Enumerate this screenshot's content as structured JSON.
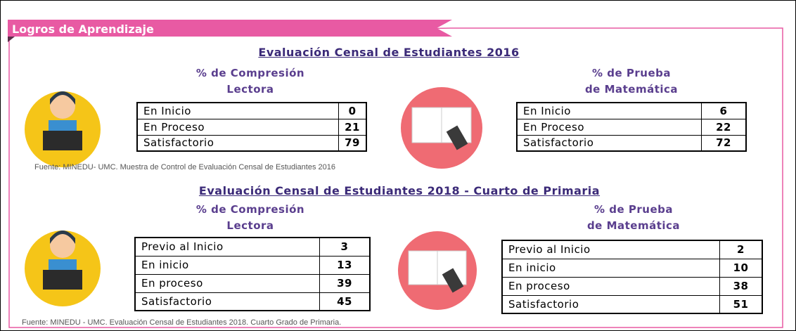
{
  "header": {
    "title": "Logros de Aprendizaje"
  },
  "sections": [
    {
      "title": "Evaluación Censal de Estudiantes 2016",
      "reading": {
        "title": [
          "% de Compresión",
          "Lectora"
        ],
        "rows": [
          [
            "En Inicio",
            0
          ],
          [
            "En Proceso",
            21
          ],
          [
            "Satisfactorio",
            79
          ]
        ]
      },
      "math": {
        "title": [
          "% de Prueba",
          "de Matemática"
        ],
        "rows": [
          [
            "En Inicio",
            6
          ],
          [
            "En Proceso",
            22
          ],
          [
            "Satisfactorio",
            72
          ]
        ]
      },
      "source": "Fuente: MINEDU- UMC. Muestra de Control de Evaluación Censal de Estudiantes 2016"
    },
    {
      "title": "Evaluación Censal de Estudiantes 2018 - Cuarto de Primaria",
      "reading": {
        "title": [
          "% de Compresión",
          "Lectora"
        ],
        "rows": [
          [
            "Previo al  Inicio",
            3
          ],
          [
            "En inicio",
            13
          ],
          [
            "En proceso",
            39
          ],
          [
            "Satisfactorio",
            45
          ]
        ]
      },
      "math": {
        "title": [
          "% de Prueba",
          "de Matemática"
        ],
        "rows": [
          [
            "Previo al  Inicio",
            2
          ],
          [
            "En inicio",
            10
          ],
          [
            "En proceso",
            38
          ],
          [
            "Satisfactorio",
            51
          ]
        ]
      },
      "source": "Fuente: MINEDU - UMC. Evaluación Censal de Estudiantes 2018. Cuarto Grado de Primaria."
    }
  ]
}
